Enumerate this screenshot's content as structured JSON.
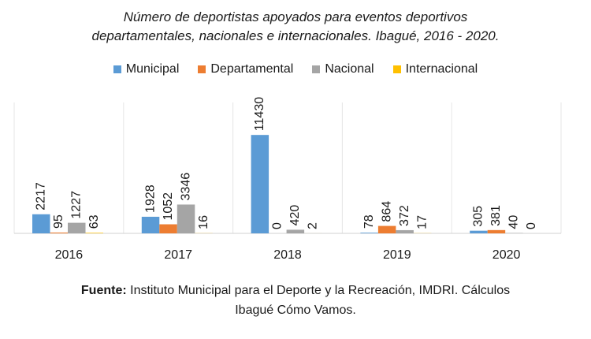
{
  "title_line1": "Número de deportistas apoyados para eventos deportivos",
  "title_line2": "departamentales, nacionales e internacionales. Ibagué, 2016 - 2020.",
  "source_label": "Fuente:",
  "source_line1": " Instituto Municipal para el Deporte y la Recreación, IMDRI. Cálculos",
  "source_line2": "Ibagué Cómo Vamos.",
  "chart_data": {
    "type": "bar",
    "title": "Número de deportistas apoyados para eventos deportivos departamentales, nacionales e internacionales. Ibagué, 2016 - 2020.",
    "categories": [
      "2016",
      "2017",
      "2018",
      "2019",
      "2020"
    ],
    "legend_position": "top",
    "grid": false,
    "ylim": [
      0,
      15200
    ],
    "series": [
      {
        "name": "Municipal",
        "color": "#5B9BD5",
        "values": [
          2217,
          1928,
          11430,
          78,
          305
        ]
      },
      {
        "name": "Departamental",
        "color": "#ED7D31",
        "values": [
          95,
          1052,
          0,
          864,
          381
        ]
      },
      {
        "name": "Nacional",
        "color": "#A5A5A5",
        "values": [
          1227,
          3346,
          420,
          372,
          40
        ]
      },
      {
        "name": "Internacional",
        "color": "#FFC000",
        "values": [
          63,
          16,
          2,
          17,
          0
        ]
      }
    ]
  }
}
